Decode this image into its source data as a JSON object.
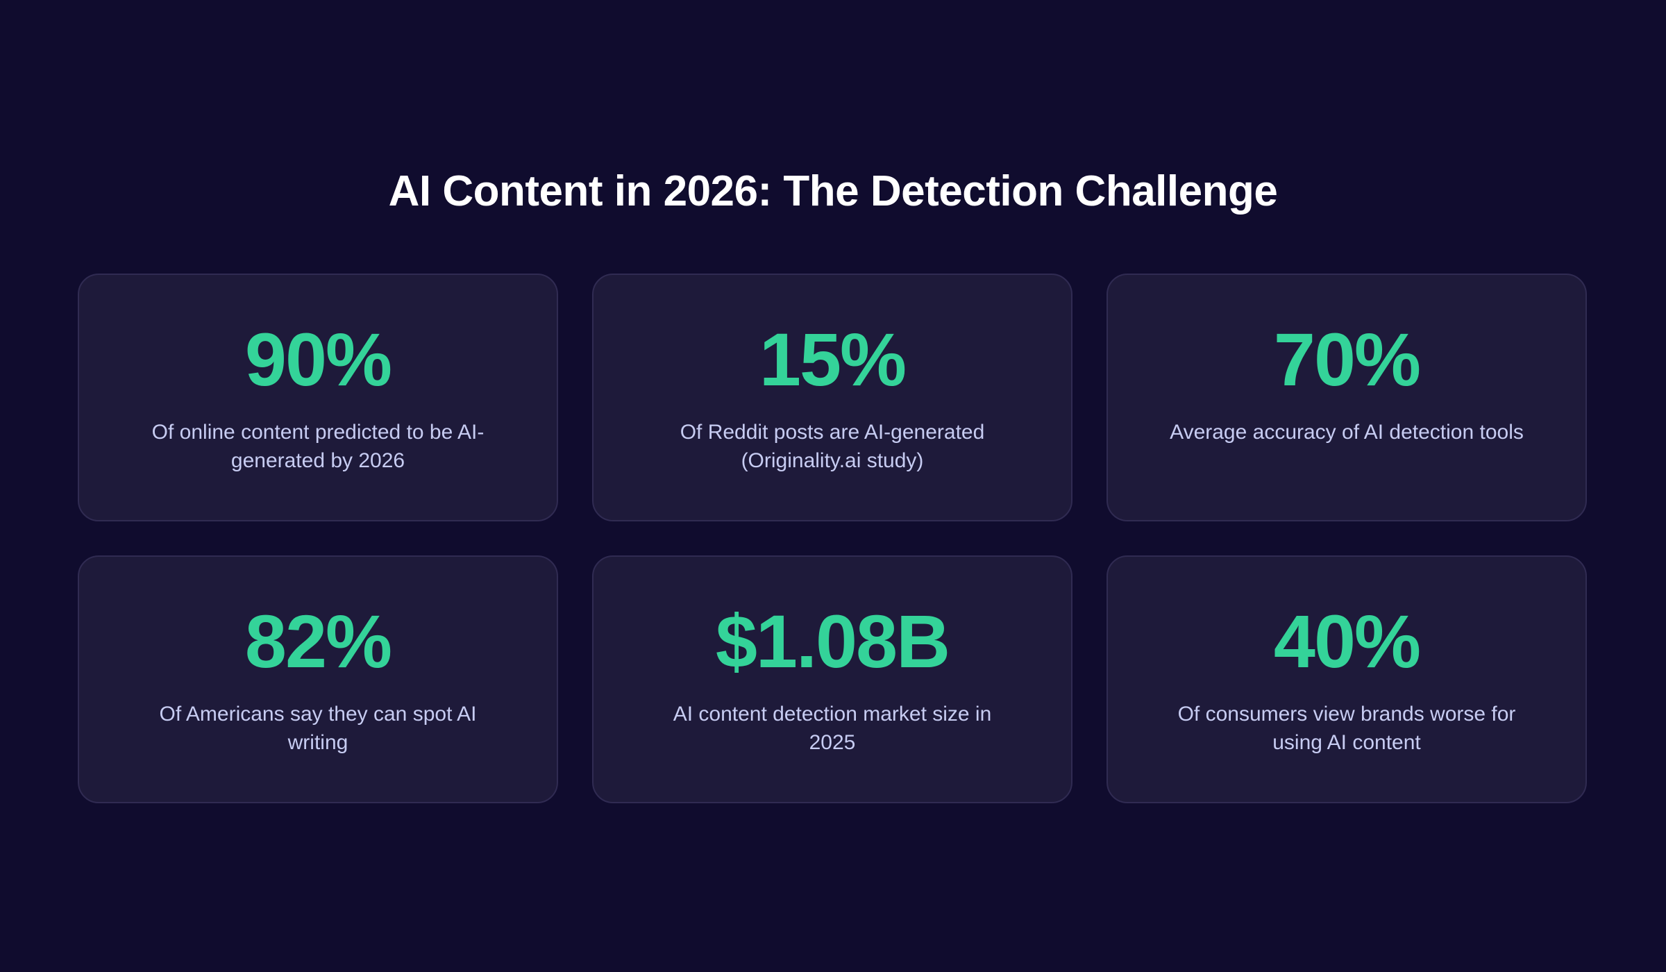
{
  "page": {
    "title": "AI Content in 2026: The Detection Challenge",
    "colors": {
      "background": "#100c2e",
      "card_background": "#1e1a3a",
      "card_border": "#302b52",
      "accent": "#34d399",
      "title_text": "#ffffff",
      "description_text": "#c7ccf2"
    }
  },
  "stats": [
    {
      "value": "90%",
      "description": "Of online content predicted to be AI-generated by 2026",
      "lines": [
        "Of online content predicted to be AI-",
        "generated by 2026"
      ]
    },
    {
      "value": "15%",
      "description": "Of Reddit posts are AI-generated (Originality.ai study)",
      "lines": [
        "Of Reddit posts are AI-generated",
        "(Originality.ai study)"
      ]
    },
    {
      "value": "70%",
      "description": "Average accuracy of AI detection tools",
      "lines": [
        "Average accuracy of AI detection tools"
      ]
    },
    {
      "value": "82%",
      "description": "Of Americans say they can spot AI writing",
      "lines": [
        "Of Americans say they can spot AI",
        "writing"
      ]
    },
    {
      "value": "$1.08B",
      "description": "AI content detection market size in 2025",
      "lines": [
        "AI content detection market size in",
        "2025"
      ]
    },
    {
      "value": "40%",
      "description": "Of consumers view brands worse for using AI content",
      "lines": [
        "Of consumers view brands worse for",
        "using AI content"
      ]
    }
  ]
}
